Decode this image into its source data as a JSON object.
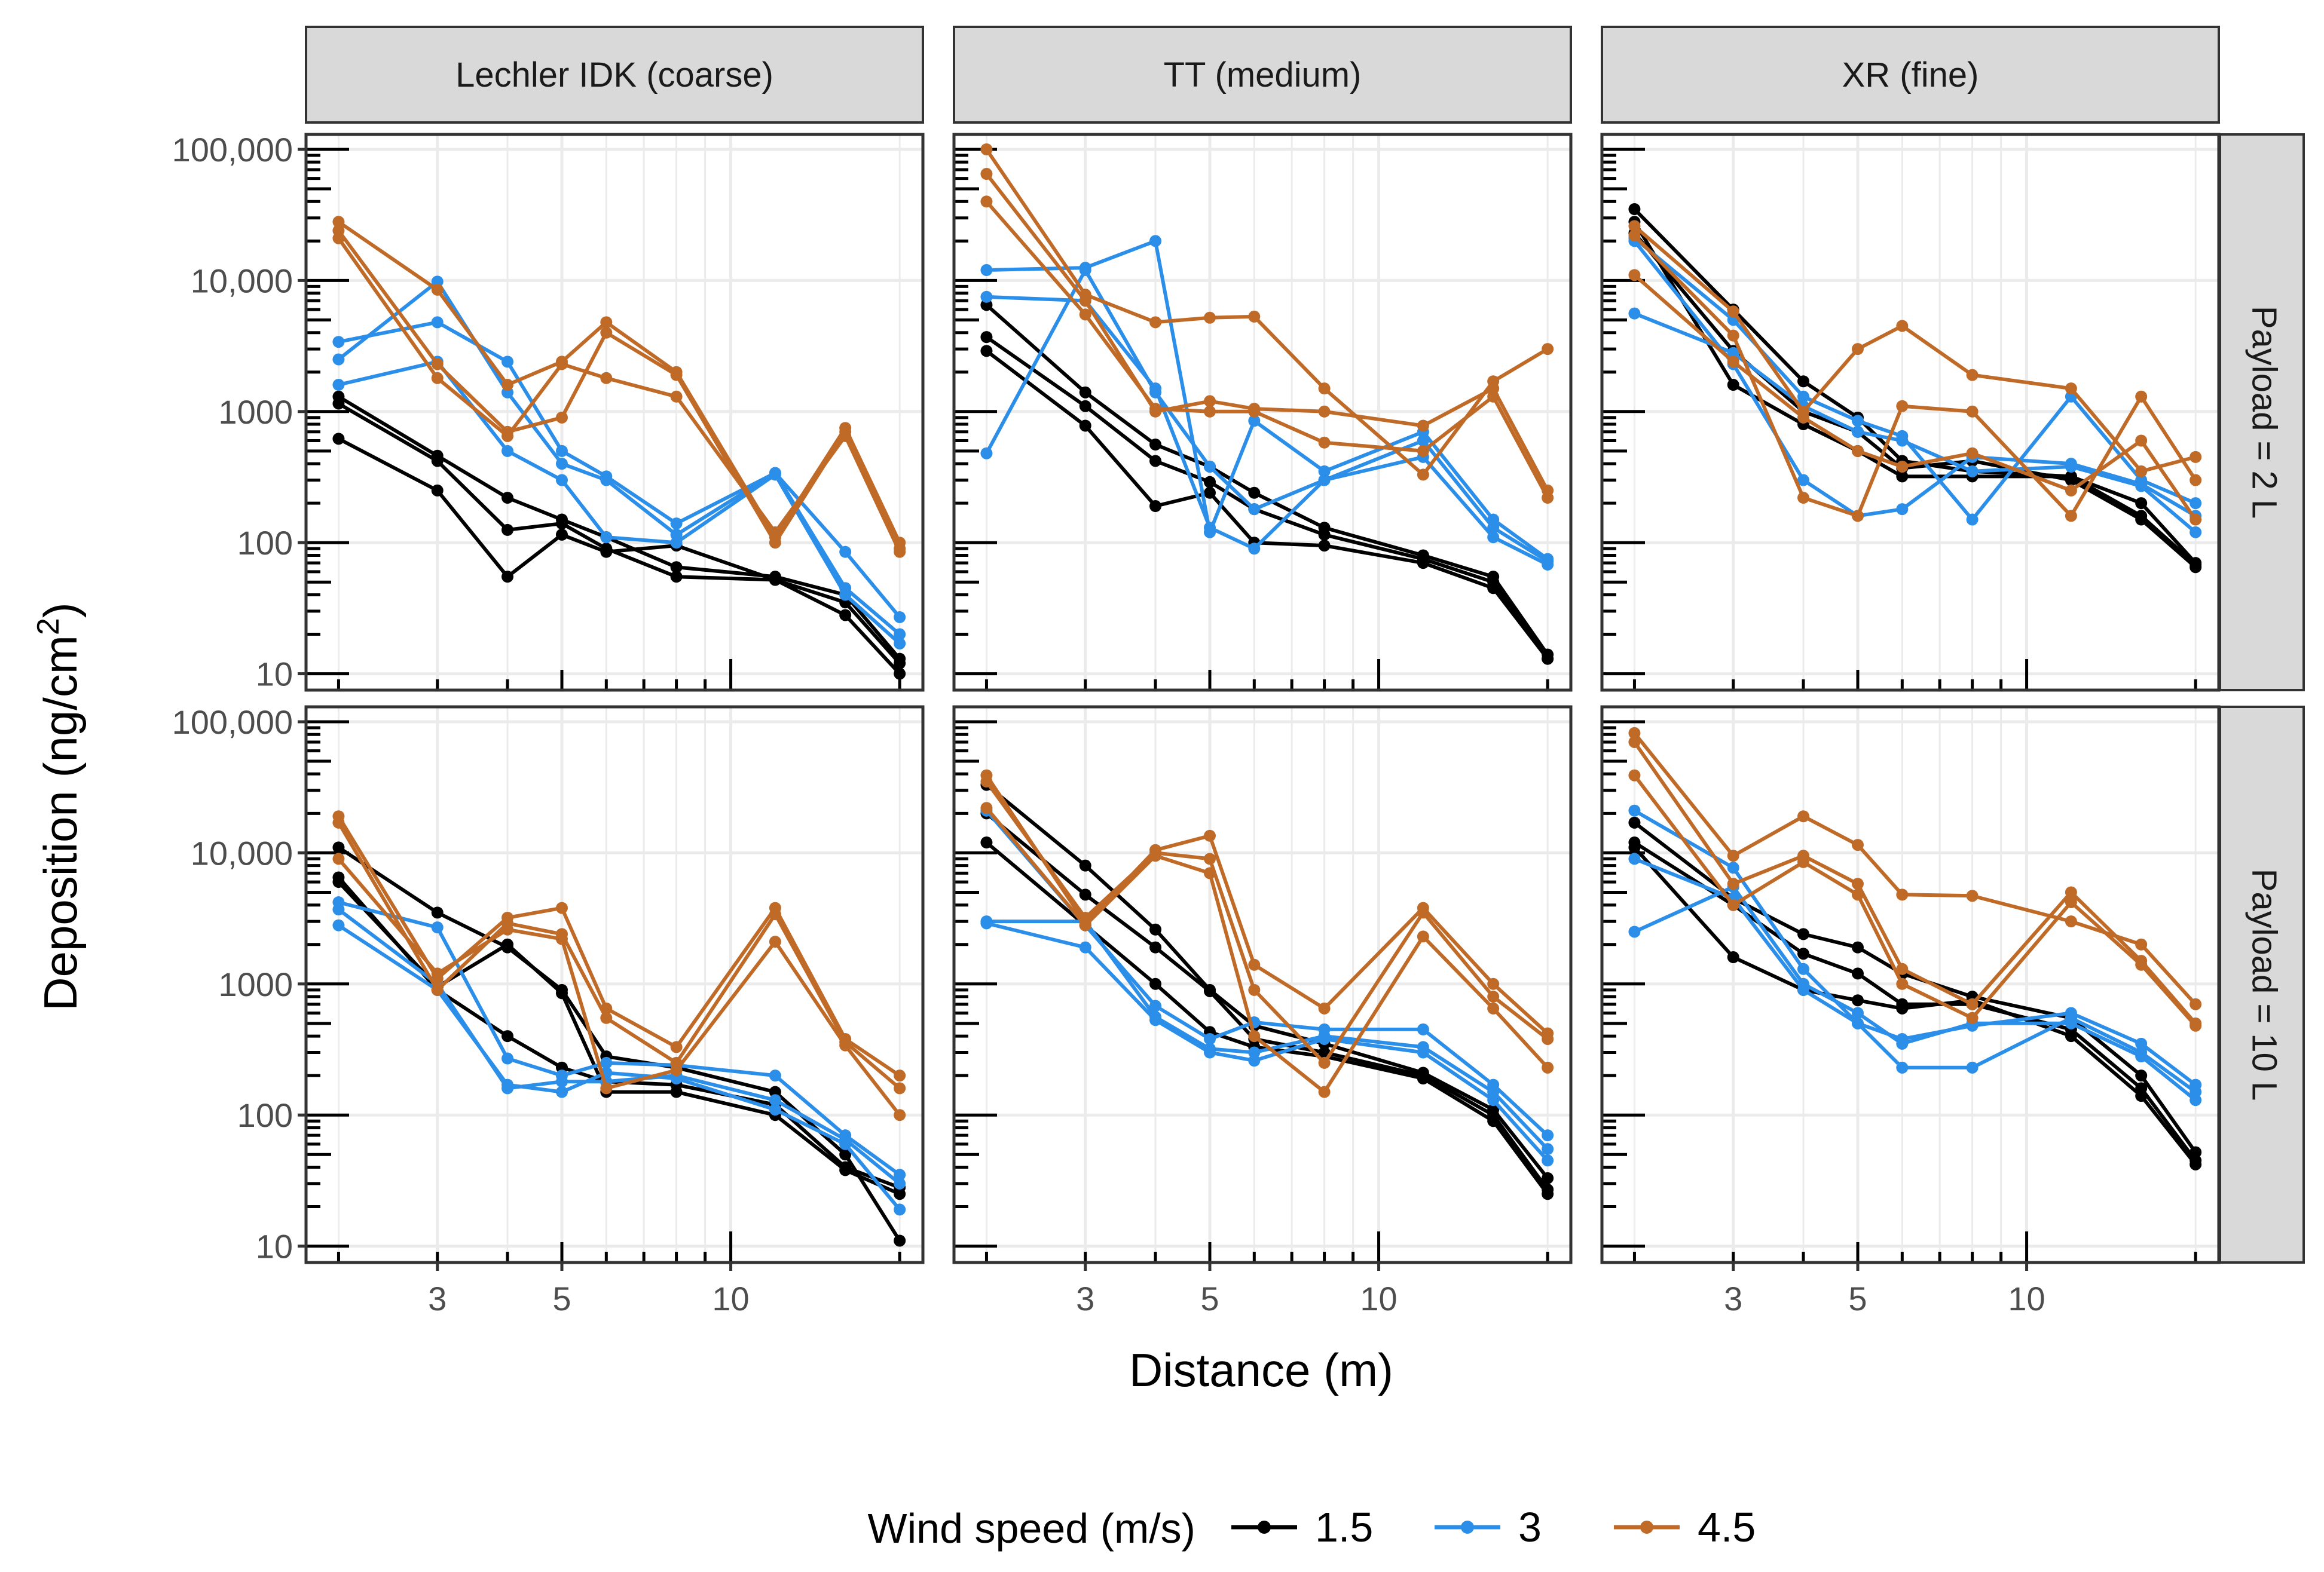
{
  "chart_data": {
    "type": "line",
    "title": "",
    "xlabel": "Distance (m)",
    "ylabel_main": "Deposition (ng/cm",
    "ylabel_sup": "2",
    "ylabel_close": ")",
    "xscale": "log",
    "yscale": "log",
    "xlim": [
      1.75,
      22
    ],
    "ylim": [
      7.5,
      130000
    ],
    "x_ticks": [
      {
        "value": 3,
        "label": "3"
      },
      {
        "value": 5,
        "label": "5"
      },
      {
        "value": 10,
        "label": "10"
      }
    ],
    "y_ticks": [
      {
        "value": 10,
        "label": "10"
      },
      {
        "value": 100,
        "label": "100"
      },
      {
        "value": 1000,
        "label": "1000"
      },
      {
        "value": 10000,
        "label": "10,000"
      },
      {
        "value": 100000,
        "label": "100,000"
      }
    ],
    "x_grid_minor": [
      2,
      4,
      6,
      7,
      8,
      9,
      20
    ],
    "col_strips": [
      "Lechler IDK  (coarse)",
      "TT (medium)",
      "XR (fine)"
    ],
    "row_strips": [
      "Payload = 2 L",
      "Payload = 10 L"
    ],
    "x": [
      2,
      3,
      4,
      5,
      6,
      8,
      12,
      16,
      20
    ],
    "legend": {
      "title": "Wind speed (m/s)",
      "position": "bottom",
      "items": [
        {
          "label": "1.5",
          "color": "#000000"
        },
        {
          "label": "3",
          "color": "#2b8ee8"
        },
        {
          "label": "4.5",
          "color": "#c06a28"
        }
      ]
    },
    "panels": [
      {
        "row": 0,
        "col": 0,
        "series": [
          {
            "wind": "1.5",
            "values": [
              1300,
              460,
              220,
              150,
              110,
              65,
              55,
              40,
              13
            ]
          },
          {
            "wind": "1.5",
            "values": [
              1150,
              420,
              125,
              140,
              90,
              55,
              52,
              35,
              12
            ]
          },
          {
            "wind": "1.5",
            "values": [
              620,
              250,
              55,
              115,
              85,
              95,
              52,
              28,
              10
            ]
          },
          {
            "wind": "3",
            "values": [
              3400,
              4800,
              2400,
              500,
              320,
              140,
              340,
              85,
              27
            ]
          },
          {
            "wind": "3",
            "values": [
              2500,
              9800,
              1400,
              400,
              300,
              115,
              340,
              45,
              20
            ]
          },
          {
            "wind": "3",
            "values": [
              1600,
              2400,
              500,
              300,
              110,
              100,
              330,
              40,
              17
            ]
          },
          {
            "wind": "4.5",
            "values": [
              28000,
              8500,
              1600,
              2400,
              4800,
              2000,
              110,
              750,
              100
            ]
          },
          {
            "wind": "4.5",
            "values": [
              24000,
              2300,
              700,
              900,
              4000,
              1900,
              100,
              700,
              90
            ]
          },
          {
            "wind": "4.5",
            "values": [
              21000,
              1800,
              650,
              2300,
              1800,
              1300,
              120,
              650,
              85
            ]
          }
        ]
      },
      {
        "row": 0,
        "col": 1,
        "series": [
          {
            "wind": "1.5",
            "values": [
              6500,
              1400,
              560,
              380,
              240,
              130,
              80,
              55,
              14
            ]
          },
          {
            "wind": "1.5",
            "values": [
              3700,
              1100,
              420,
              290,
              180,
              115,
              75,
              50,
              13
            ]
          },
          {
            "wind": "1.5",
            "values": [
              2900,
              780,
              190,
              240,
              100,
              95,
              70,
              45,
              13
            ]
          },
          {
            "wind": "3",
            "values": [
              12000,
              12500,
              20000,
              120,
              850,
              350,
              700,
              150,
              75
            ]
          },
          {
            "wind": "3",
            "values": [
              7500,
              7000,
              1500,
              130,
              90,
              300,
              600,
              130,
              72
            ]
          },
          {
            "wind": "3",
            "values": [
              480,
              12000,
              1400,
              380,
              180,
              300,
              450,
              110,
              68
            ]
          },
          {
            "wind": "4.5",
            "values": [
              100000,
              7800,
              4800,
              5200,
              5300,
              1500,
              330,
              1700,
              3000
            ]
          },
          {
            "wind": "4.5",
            "values": [
              65000,
              7000,
              1000,
              1200,
              1050,
              1000,
              780,
              1500,
              250
            ]
          },
          {
            "wind": "4.5",
            "values": [
              40000,
              5500,
              1050,
              1000,
              1000,
              580,
              500,
              1300,
              220
            ]
          }
        ]
      },
      {
        "row": 0,
        "col": 2,
        "series": [
          {
            "wind": "1.5",
            "values": [
              35000,
              6000,
              1700,
              900,
              420,
              350,
              320,
              200,
              70
            ]
          },
          {
            "wind": "1.5",
            "values": [
              28000,
              1600,
              800,
              500,
              320,
              320,
              320,
              160,
              68
            ]
          },
          {
            "wind": "1.5",
            "values": [
              23000,
              2900,
              1000,
              700,
              370,
              420,
              300,
              150,
              65
            ]
          },
          {
            "wind": "3",
            "values": [
              21000,
              5000,
              1300,
              850,
              650,
              150,
              1300,
              300,
              200
            ]
          },
          {
            "wind": "3",
            "values": [
              20000,
              2300,
              300,
              160,
              180,
              450,
              400,
              280,
              160
            ]
          },
          {
            "wind": "3",
            "values": [
              5600,
              2800,
              1100,
              700,
              600,
              350,
              380,
              270,
              120
            ]
          },
          {
            "wind": "4.5",
            "values": [
              26000,
              5800,
              1000,
              3000,
              4500,
              1900,
              1500,
              350,
              450
            ]
          },
          {
            "wind": "4.5",
            "values": [
              22000,
              3800,
              220,
              160,
              1100,
              1000,
              160,
              1300,
              300
            ]
          },
          {
            "wind": "4.5",
            "values": [
              11000,
              2400,
              900,
              500,
              380,
              480,
              250,
              600,
              150
            ]
          }
        ]
      },
      {
        "row": 1,
        "col": 0,
        "series": [
          {
            "wind": "1.5",
            "values": [
              11000,
              3500,
              1900,
              900,
              280,
              230,
              150,
              50,
              11
            ]
          },
          {
            "wind": "1.5",
            "values": [
              6500,
              900,
              400,
              230,
              180,
              170,
              120,
              40,
              28
            ]
          },
          {
            "wind": "1.5",
            "values": [
              6000,
              950,
              2000,
              850,
              150,
              150,
              100,
              38,
              25
            ]
          },
          {
            "wind": "3",
            "values": [
              4200,
              2700,
              270,
              200,
              250,
              240,
              200,
              70,
              35
            ]
          },
          {
            "wind": "3",
            "values": [
              3700,
              1000,
              160,
              180,
              180,
              200,
              130,
              65,
              30
            ]
          },
          {
            "wind": "3",
            "values": [
              2800,
              900,
              170,
              150,
              210,
              190,
              110,
              60,
              19
            ]
          },
          {
            "wind": "4.5",
            "values": [
              19000,
              1100,
              3200,
              3800,
              650,
              330,
              3800,
              380,
              200
            ]
          },
          {
            "wind": "4.5",
            "values": [
              17000,
              900,
              2900,
              2400,
              550,
              250,
              3400,
              360,
              160
            ]
          },
          {
            "wind": "4.5",
            "values": [
              9000,
              1200,
              2600,
              2200,
              160,
              220,
              2100,
              340,
              100
            ]
          }
        ]
      },
      {
        "row": 1,
        "col": 1,
        "series": [
          {
            "wind": "1.5",
            "values": [
              33000,
              8000,
              2600,
              900,
              480,
              350,
              210,
              110,
              33
            ]
          },
          {
            "wind": "1.5",
            "values": [
              20000,
              4800,
              1900,
              880,
              380,
              300,
              200,
              100,
              27
            ]
          },
          {
            "wind": "1.5",
            "values": [
              12000,
              2800,
              1000,
              430,
              330,
              280,
              190,
              90,
              25
            ]
          },
          {
            "wind": "3",
            "values": [
              21000,
              2800,
              680,
              380,
              510,
              450,
              450,
              170,
              70
            ]
          },
          {
            "wind": "3",
            "values": [
              3000,
              3000,
              560,
              320,
              300,
              400,
              330,
              150,
              55
            ]
          },
          {
            "wind": "3",
            "values": [
              2900,
              1900,
              530,
              300,
              260,
              380,
              300,
              130,
              45
            ]
          },
          {
            "wind": "4.5",
            "values": [
              39000,
              2900,
              10500,
              13500,
              1400,
              650,
              3800,
              1000,
              420
            ]
          },
          {
            "wind": "4.5",
            "values": [
              35000,
              3200,
              10000,
              9000,
              900,
              250,
              3500,
              800,
              380
            ]
          },
          {
            "wind": "4.5",
            "values": [
              22000,
              2800,
              9500,
              7000,
              400,
              150,
              2300,
              650,
              230
            ]
          }
        ]
      },
      {
        "row": 1,
        "col": 2,
        "series": [
          {
            "wind": "1.5",
            "values": [
              17000,
              4500,
              2400,
              1900,
              1200,
              800,
              550,
              200,
              52
            ]
          },
          {
            "wind": "1.5",
            "values": [
              12000,
              4000,
              1700,
              1200,
              700,
              700,
              450,
              160,
              45
            ]
          },
          {
            "wind": "1.5",
            "values": [
              11000,
              1600,
              900,
              750,
              650,
              750,
              400,
              140,
              42
            ]
          },
          {
            "wind": "3",
            "values": [
              21000,
              7700,
              1300,
              500,
              380,
              480,
              600,
              350,
              170
            ]
          },
          {
            "wind": "3",
            "values": [
              9000,
              4500,
              900,
              500,
              230,
              230,
              550,
              300,
              150
            ]
          },
          {
            "wind": "3",
            "values": [
              2500,
              5500,
              1000,
              600,
              350,
              500,
              500,
              280,
              130
            ]
          },
          {
            "wind": "4.5",
            "values": [
              82000,
              9500,
              19000,
              11500,
              4800,
              4700,
              3000,
              2000,
              700
            ]
          },
          {
            "wind": "4.5",
            "values": [
              70000,
              5800,
              9500,
              5800,
              1300,
              700,
              5000,
              1500,
              500
            ]
          },
          {
            "wind": "4.5",
            "values": [
              39000,
              4000,
              8500,
              4800,
              1000,
              550,
              4200,
              1400,
              480
            ]
          }
        ]
      }
    ]
  }
}
